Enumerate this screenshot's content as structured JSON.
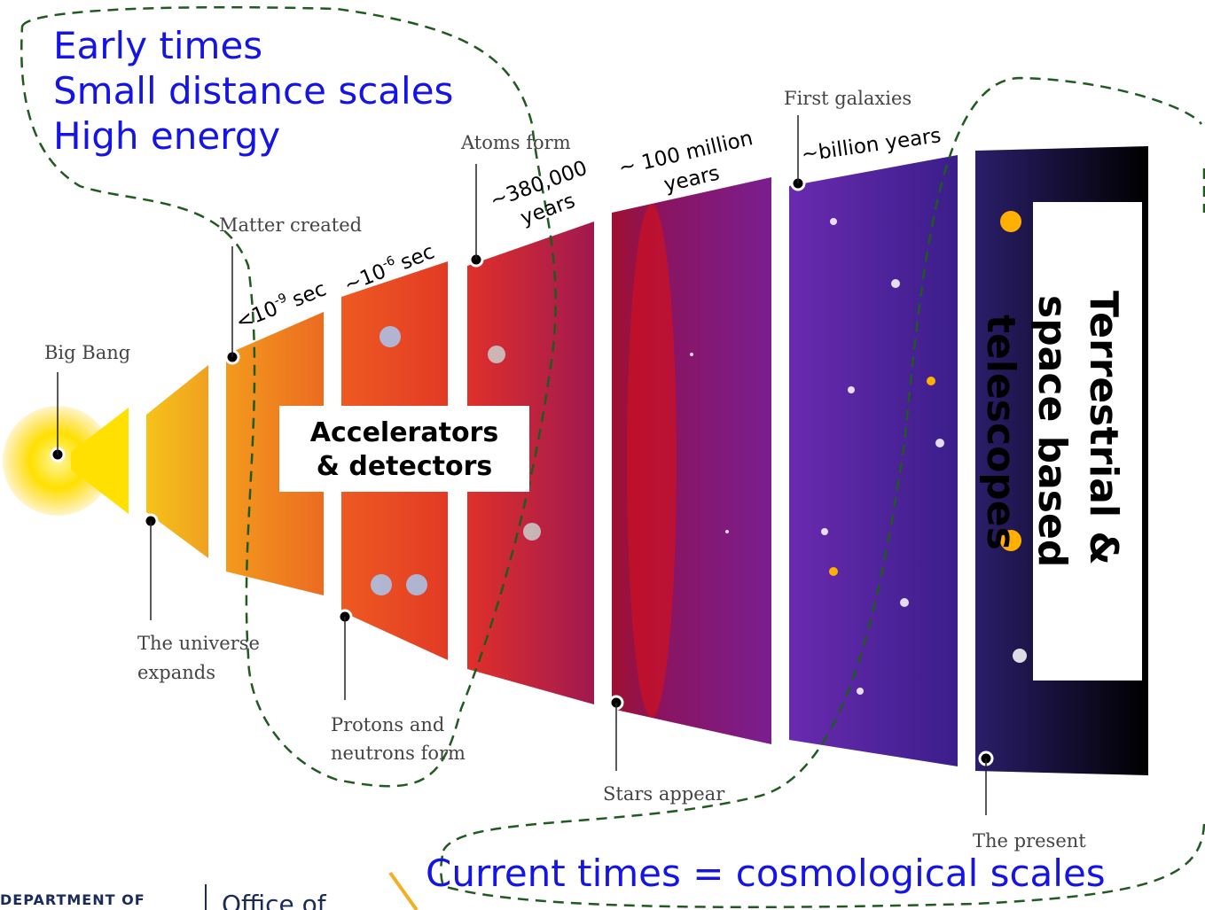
{
  "intro": [
    "Early times",
    "Small distance scales",
    "High energy"
  ],
  "stages": {
    "big_bang": "Big Bang",
    "expands": [
      "The universe",
      "expands"
    ],
    "matter": "Matter created",
    "protons": [
      "Protons and",
      "neutrons form"
    ],
    "atoms": "Atoms form",
    "stars": "Stars appear",
    "galaxies": "First galaxies",
    "present": "The present"
  },
  "times": {
    "t1": {
      "base": "<10",
      "exp": "-9",
      "unit": "sec"
    },
    "t2": {
      "base": "~10",
      "exp": "-6",
      "unit": "sec"
    },
    "t3": [
      "~380,000",
      "years"
    ],
    "t4": [
      "~ 100 million",
      "years"
    ],
    "t5": "~billion years"
  },
  "accelerators": [
    "Accelerators",
    "& detectors"
  ],
  "telescopes": [
    "Terrestrial &",
    "space based",
    "telescopes"
  ],
  "current": "Current times = cosmological scales",
  "footer": {
    "dept": "DEPARTMENT OF",
    "office": "Office of"
  }
}
